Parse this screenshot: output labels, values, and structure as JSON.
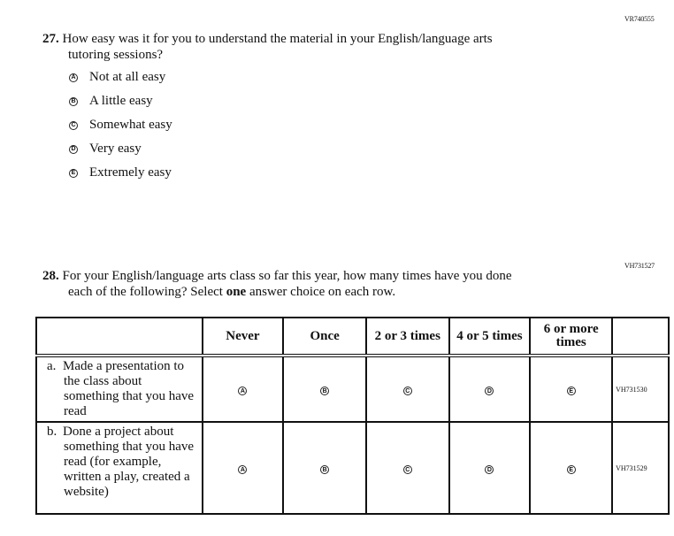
{
  "q27": {
    "code": "VR740555",
    "number": "27.",
    "text_line1": "How easy was it for you to understand the material in your English/language arts",
    "text_line2": "tutoring sessions?",
    "options": [
      {
        "letter": "A",
        "label": "Not at all easy"
      },
      {
        "letter": "B",
        "label": "A little easy"
      },
      {
        "letter": "C",
        "label": "Somewhat easy"
      },
      {
        "letter": "D",
        "label": "Very easy"
      },
      {
        "letter": "E",
        "label": "Extremely easy"
      }
    ]
  },
  "q28": {
    "code": "VH731527",
    "number": "28.",
    "text_line1": "For your English/language arts class so far this year, how many times have you done",
    "text_line2_pre": "each of the following? Select ",
    "text_line2_bold": "one",
    "text_line2_post": " answer choice on each row.",
    "columns": [
      "Never",
      "Once",
      "2 or 3 times",
      "4 or 5 times",
      "6 or more times"
    ],
    "letters": [
      "A",
      "B",
      "C",
      "D",
      "E"
    ],
    "rows": [
      {
        "letter": "a.",
        "label": "Made a presentation to the class about something that you have read",
        "code": "VH731530"
      },
      {
        "letter": "b.",
        "label": "Done a project about something that you have read (for example, written a play, created a website)",
        "code": "VH731529"
      }
    ]
  }
}
